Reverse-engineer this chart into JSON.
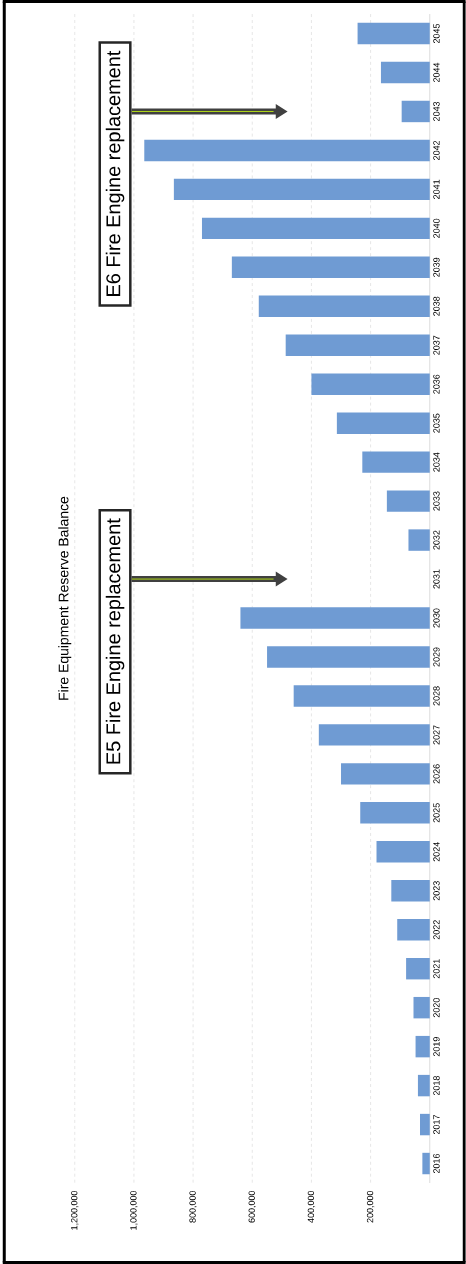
{
  "chart_data": {
    "type": "bar",
    "orientation": "horizontal",
    "title": "Fire Equipment Reserve Balance",
    "categories": [
      "2045",
      "2044",
      "2043",
      "2042",
      "2041",
      "2040",
      "2039",
      "2038",
      "2037",
      "2036",
      "2035",
      "2034",
      "2033",
      "2032",
      "2031",
      "2030",
      "2029",
      "2028",
      "2027",
      "2026",
      "2025",
      "2024",
      "2023",
      "2022",
      "2021",
      "2020",
      "2019",
      "2018",
      "2017",
      "2016"
    ],
    "values": [
      244000,
      165000,
      95000,
      965000,
      865000,
      770000,
      669000,
      578000,
      487000,
      400000,
      314000,
      228000,
      145000,
      72000,
      0,
      640000,
      550000,
      460000,
      375000,
      300000,
      235000,
      180000,
      130000,
      110000,
      80000,
      55000,
      48000,
      40000,
      33000,
      25000
    ],
    "color": "#6f9bd3",
    "xlim": [
      1200000,
      0
    ],
    "xticks": [
      {
        "value": 200000,
        "label": "200,000"
      },
      {
        "value": 400000,
        "label": "400,000"
      },
      {
        "value": 600000,
        "label": "600,000"
      },
      {
        "value": 800000,
        "label": "800,000"
      },
      {
        "value": 1000000,
        "label": "1,000,000"
      },
      {
        "value": 1200000,
        "label": "1,200,000"
      }
    ],
    "grid": "x",
    "annotations": [
      "E5 Fire Engine replacement",
      "E6 Fire Engine replacement"
    ]
  }
}
